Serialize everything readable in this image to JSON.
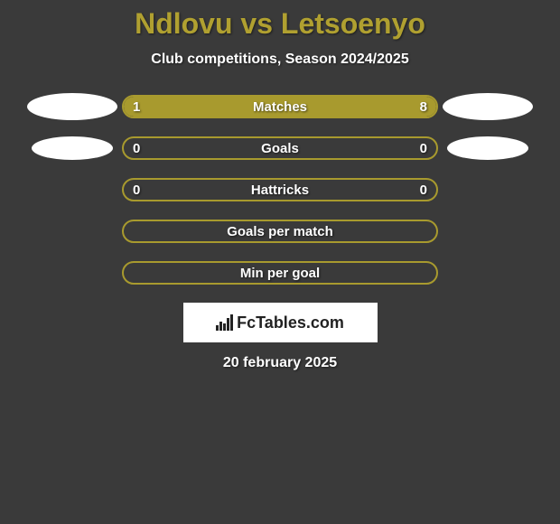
{
  "title": "Ndlovu vs Letsoenyo",
  "subtitle": "Club competitions, Season 2024/2025",
  "accent_color": "#a89a2e",
  "background_color": "#3a3a3a",
  "text_color": "#ffffff",
  "stats": [
    {
      "label": "Matches",
      "left_value": "1",
      "right_value": "8",
      "left_pct": 18,
      "right_pct": 82,
      "show_left_avatar": "large",
      "show_right_avatar": "large"
    },
    {
      "label": "Goals",
      "left_value": "0",
      "right_value": "0",
      "left_pct": 0,
      "right_pct": 0,
      "show_left_avatar": "small",
      "show_right_avatar": "small"
    },
    {
      "label": "Hattricks",
      "left_value": "0",
      "right_value": "0",
      "left_pct": 0,
      "right_pct": 0,
      "show_left_avatar": "none",
      "show_right_avatar": "none"
    },
    {
      "label": "Goals per match",
      "left_value": "",
      "right_value": "",
      "left_pct": 0,
      "right_pct": 0,
      "show_left_avatar": "none",
      "show_right_avatar": "none"
    },
    {
      "label": "Min per goal",
      "left_value": "",
      "right_value": "",
      "left_pct": 0,
      "right_pct": 0,
      "show_left_avatar": "none",
      "show_right_avatar": "none"
    }
  ],
  "logo_text": "FcTables.com",
  "date": "20 february 2025"
}
